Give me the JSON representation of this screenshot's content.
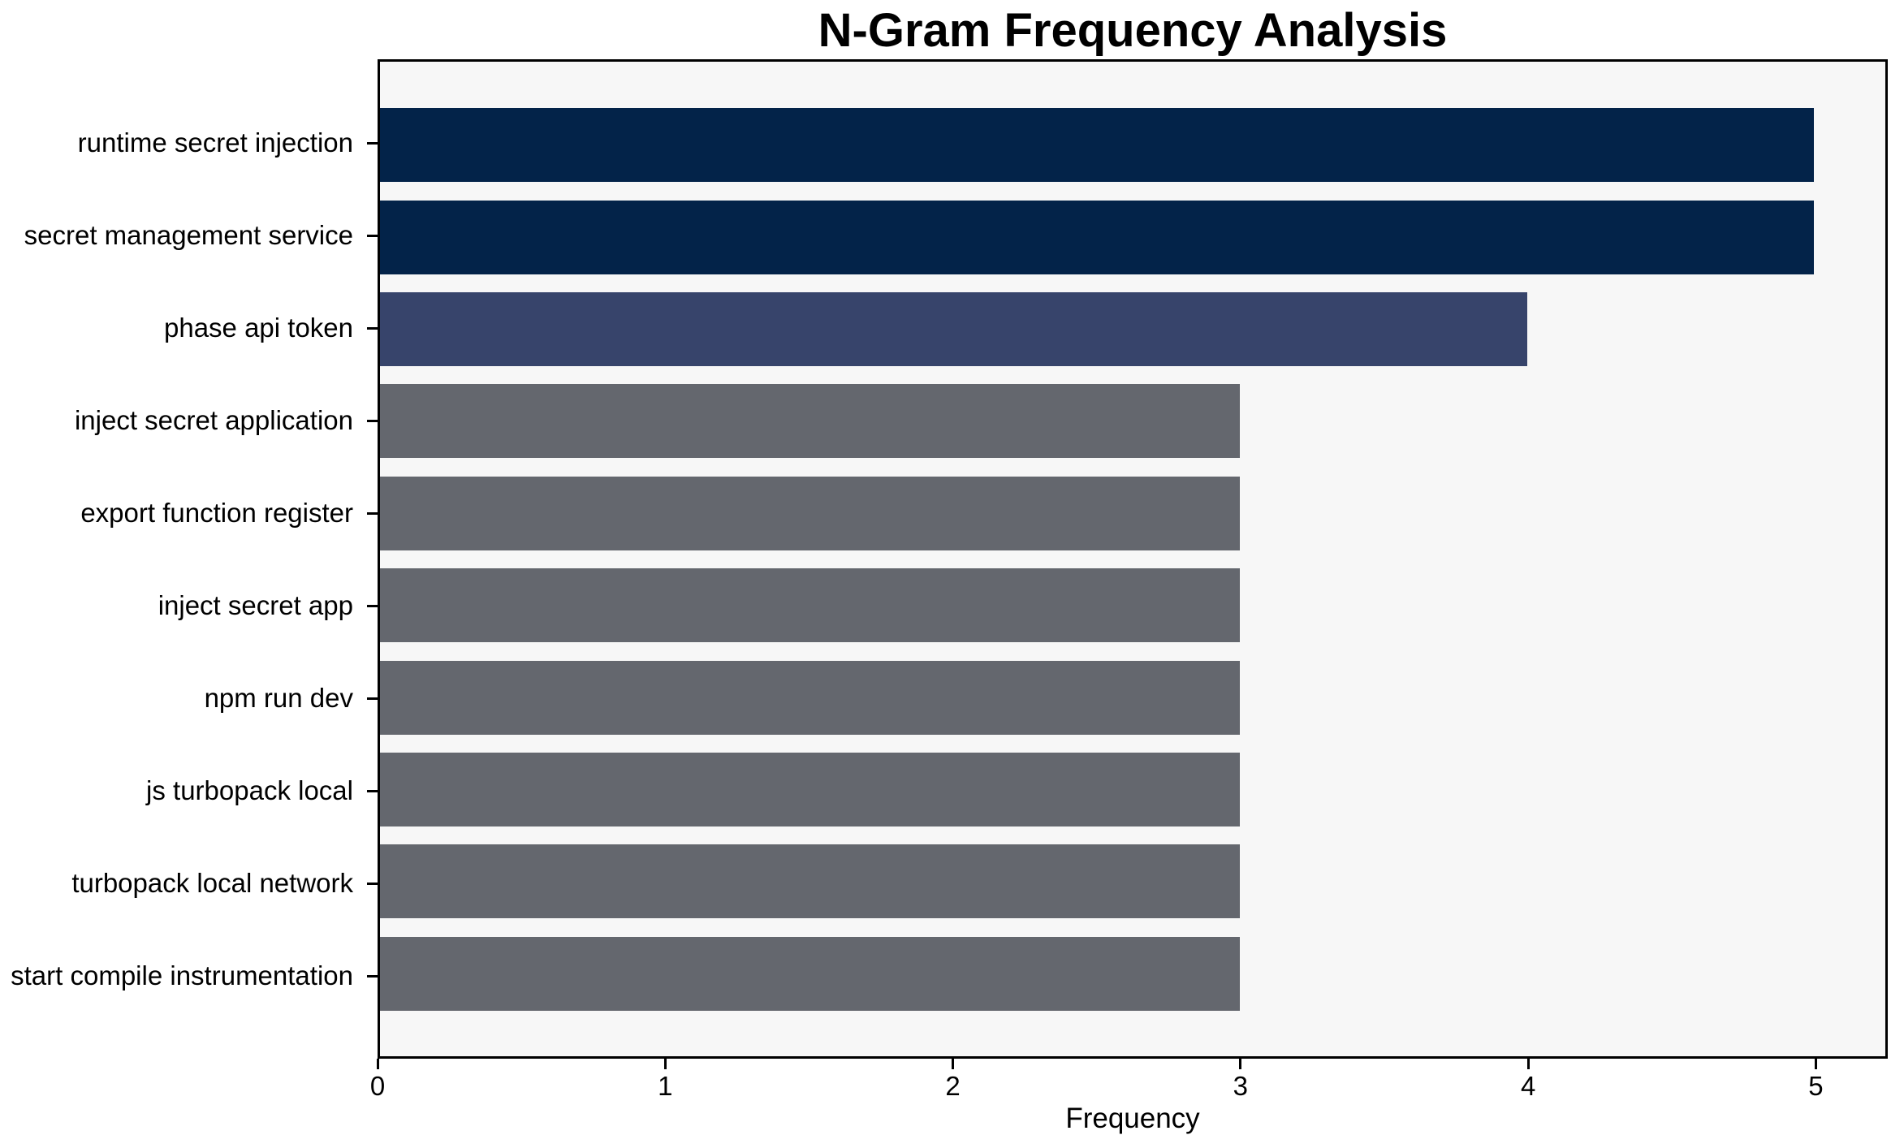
{
  "chart_data": {
    "type": "bar",
    "orientation": "horizontal",
    "title": "N-Gram Frequency Analysis",
    "xlabel": "Frequency",
    "ylabel": "",
    "categories": [
      "runtime secret injection",
      "secret management service",
      "phase api token",
      "inject secret application",
      "export function register",
      "inject secret app",
      "npm run dev",
      "js turbopack local",
      "turbopack local network",
      "start compile instrumentation"
    ],
    "values": [
      5,
      5,
      4,
      3,
      3,
      3,
      3,
      3,
      3,
      3
    ],
    "bar_colors": [
      "#032349",
      "#032349",
      "#37446B",
      "#64676E",
      "#64676E",
      "#64676E",
      "#64676E",
      "#64676E",
      "#64676E",
      "#64676E"
    ],
    "xticks": [
      "0",
      "1",
      "2",
      "3",
      "4",
      "5"
    ],
    "xtick_values": [
      0,
      1,
      2,
      3,
      4,
      5
    ],
    "xlim": [
      0,
      5.25
    ],
    "grid": false,
    "legend": null,
    "plot_background": "#F7F7F7",
    "figure_background": "#FFFFFF",
    "axis_color": "#000000",
    "text_color": "#000000"
  }
}
